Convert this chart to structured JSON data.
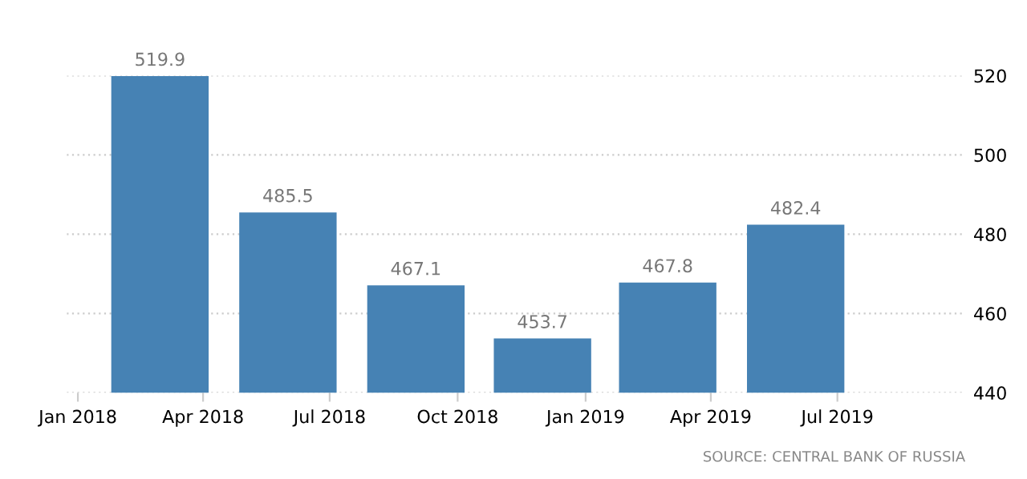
{
  "chart_data": {
    "type": "bar",
    "x": [
      "2018-03",
      "2018-06",
      "2018-09",
      "2018-12",
      "2019-03",
      "2019-06"
    ],
    "values": [
      519.9,
      485.5,
      467.1,
      453.7,
      467.8,
      482.4
    ],
    "color": "#4682b4",
    "data_labels": true,
    "ylim": [
      440,
      520
    ],
    "yticks": [
      440,
      460,
      480,
      500,
      520
    ],
    "xlim": [
      "2017-12-24",
      "2019-10-01"
    ],
    "xticks": [
      {
        "value": "2018-01",
        "label": "Jan 2018"
      },
      {
        "value": "2018-04",
        "label": "Apr 2018"
      },
      {
        "value": "2018-07",
        "label": "Jul 2018"
      },
      {
        "value": "2018-10",
        "label": "Oct 2018"
      },
      {
        "value": "2019-01",
        "label": "Jan 2019"
      },
      {
        "value": "2019-04",
        "label": "Apr 2019"
      },
      {
        "value": "2019-07",
        "label": "Jul 2019"
      }
    ],
    "grid": "y",
    "legend": false,
    "annotations": [
      "SOURCE: CENTRAL BANK OF RUSSIA"
    ]
  }
}
